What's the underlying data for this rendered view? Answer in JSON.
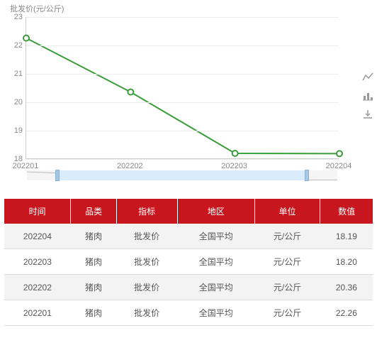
{
  "chart": {
    "type": "line",
    "y_axis_title": "批发价(元/公斤)",
    "y_ticks": [
      18,
      19,
      20,
      21,
      22,
      23
    ],
    "ylim": [
      18,
      23
    ],
    "x_labels": [
      "202201",
      "202202",
      "202203",
      "202204"
    ],
    "values": [
      22.26,
      20.36,
      18.2,
      18.19
    ],
    "line_color": "#3a9d3a",
    "line_width": 2,
    "marker_border": "#3a9d3a",
    "marker_fill": "#ffffff",
    "marker_radius": 4,
    "grid_color": "#eeeeee",
    "axis_color": "#cccccc",
    "tick_color": "#888888",
    "tick_fontsize": 11,
    "slider_bg": "#f5f5f5",
    "slider_fill": "#daecfb",
    "slider_handle": "#a6c8e4"
  },
  "toolbar": {
    "line_view": "line-view",
    "bar_view": "bar-view",
    "download": "download"
  },
  "table": {
    "headers": [
      "时间",
      "品类",
      "指标",
      "地区",
      "单位",
      "数值"
    ],
    "header_bg": "#c7161e",
    "header_fg": "#ffffff",
    "row_odd_bg": "#f3f3f3",
    "row_even_bg": "#ffffff",
    "rows": [
      [
        "202204",
        "猪肉",
        "批发价",
        "全国平均",
        "元/公斤",
        "18.19"
      ],
      [
        "202203",
        "猪肉",
        "批发价",
        "全国平均",
        "元/公斤",
        "18.20"
      ],
      [
        "202202",
        "猪肉",
        "批发价",
        "全国平均",
        "元/公斤",
        "20.36"
      ],
      [
        "202201",
        "猪肉",
        "批发价",
        "全国平均",
        "元/公斤",
        "22.26"
      ]
    ]
  }
}
